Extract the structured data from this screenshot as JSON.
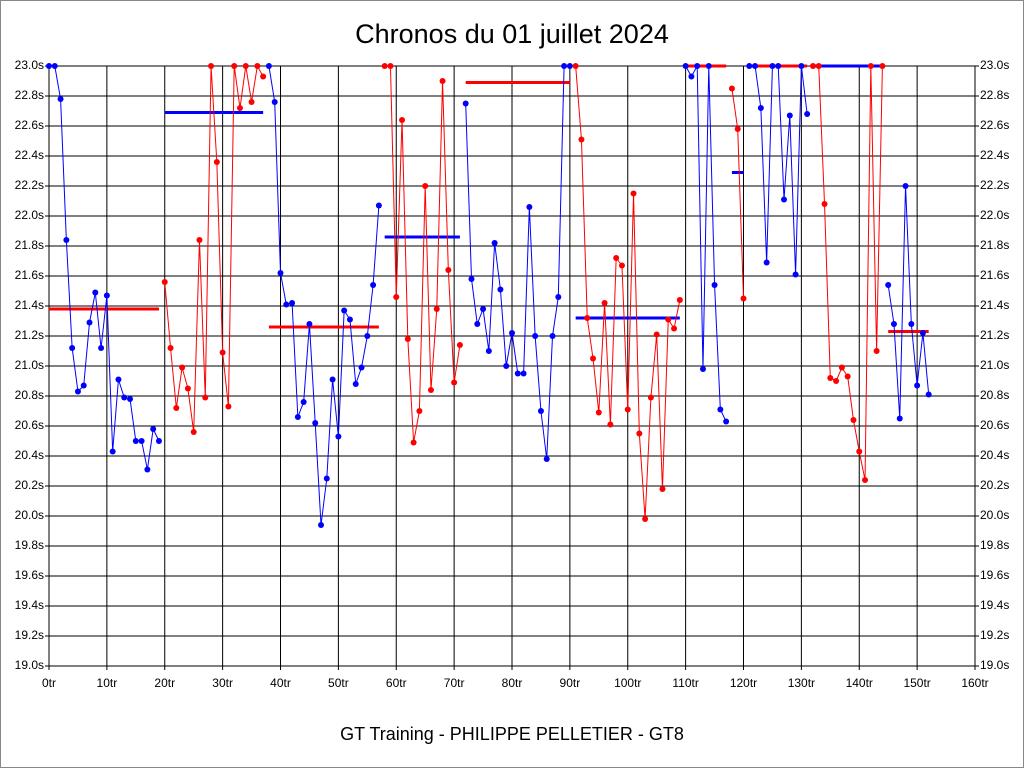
{
  "chart_data": {
    "type": "line",
    "title": "Chronos du 01 juillet 2024",
    "footer": "GT Training - PHILIPPE PELLETIER - GT8",
    "xlim": [
      0,
      160
    ],
    "xticks": [
      {
        "value": 0,
        "label": "0tr"
      },
      {
        "value": 10,
        "label": "10tr"
      },
      {
        "value": 20,
        "label": "20tr"
      },
      {
        "value": 30,
        "label": "30tr"
      },
      {
        "value": 40,
        "label": "40tr"
      },
      {
        "value": 50,
        "label": "50tr"
      },
      {
        "value": 60,
        "label": "60tr"
      },
      {
        "value": 70,
        "label": "70tr"
      },
      {
        "value": 80,
        "label": "80tr"
      },
      {
        "value": 90,
        "label": "90tr"
      },
      {
        "value": 100,
        "label": "100tr"
      },
      {
        "value": 110,
        "label": "110tr"
      },
      {
        "value": 120,
        "label": "120tr"
      },
      {
        "value": 130,
        "label": "130tr"
      },
      {
        "value": 140,
        "label": "140tr"
      },
      {
        "value": 150,
        "label": "150tr"
      },
      {
        "value": 160,
        "label": "160tr"
      }
    ],
    "ylim": [
      19.0,
      23.0
    ],
    "yticks": [
      {
        "value": 19.0,
        "label": "19.0s"
      },
      {
        "value": 19.2,
        "label": "19.2s"
      },
      {
        "value": 19.4,
        "label": "19.4s"
      },
      {
        "value": 19.6,
        "label": "19.6s"
      },
      {
        "value": 19.8,
        "label": "19.8s"
      },
      {
        "value": 20.0,
        "label": "20.0s"
      },
      {
        "value": 20.2,
        "label": "20.2s"
      },
      {
        "value": 20.4,
        "label": "20.4s"
      },
      {
        "value": 20.6,
        "label": "20.6s"
      },
      {
        "value": 20.8,
        "label": "20.8s"
      },
      {
        "value": 21.0,
        "label": "21.0s"
      },
      {
        "value": 21.2,
        "label": "21.2s"
      },
      {
        "value": 21.4,
        "label": "21.4s"
      },
      {
        "value": 21.6,
        "label": "21.6s"
      },
      {
        "value": 21.8,
        "label": "21.8s"
      },
      {
        "value": 22.0,
        "label": "22.0s"
      },
      {
        "value": 22.2,
        "label": "22.2s"
      },
      {
        "value": 22.4,
        "label": "22.4s"
      },
      {
        "value": 22.6,
        "label": "22.6s"
      },
      {
        "value": 22.8,
        "label": "22.8s"
      },
      {
        "value": 23.0,
        "label": "23.0s"
      }
    ],
    "grid": true,
    "series": [
      {
        "color": "#0000ff",
        "x": [
          0,
          1,
          2,
          3,
          4,
          5,
          6,
          7,
          8,
          9,
          10,
          11,
          12,
          13,
          14,
          15,
          16,
          17,
          18,
          19
        ],
        "values": [
          23.0,
          23.0,
          22.78,
          21.84,
          21.12,
          20.83,
          20.87,
          21.29,
          21.49,
          21.12,
          21.47,
          20.43,
          20.91,
          20.79,
          20.78,
          20.5,
          20.5,
          20.31,
          20.58,
          20.5
        ]
      },
      {
        "color": "#ff0000",
        "x": [
          20,
          21,
          22,
          23,
          24,
          25,
          26,
          27,
          28,
          29,
          30,
          31,
          32,
          33,
          34,
          35,
          36,
          37
        ],
        "values": [
          21.56,
          21.12,
          20.72,
          20.99,
          20.85,
          20.56,
          21.84,
          20.79,
          23.0,
          22.36,
          21.09,
          20.73,
          23.0,
          22.72,
          23.0,
          22.76,
          23.0,
          22.93
        ]
      },
      {
        "color": "#0000ff",
        "x": [
          38,
          39,
          40,
          41,
          42,
          43,
          44,
          45,
          46,
          47,
          48,
          49,
          50,
          51,
          52,
          53,
          54,
          55,
          56,
          57
        ],
        "values": [
          23.0,
          22.76,
          21.62,
          21.41,
          21.42,
          20.66,
          20.76,
          21.28,
          20.62,
          19.94,
          20.25,
          20.91,
          20.53,
          21.37,
          21.31,
          20.88,
          20.99,
          21.2,
          21.54,
          22.07
        ]
      },
      {
        "color": "#ff0000",
        "x": [
          58,
          59,
          60,
          61,
          62,
          63,
          64,
          65,
          66,
          67,
          68,
          69,
          70,
          71
        ],
        "values": [
          23.0,
          23.0,
          21.46,
          22.64,
          21.18,
          20.49,
          20.7,
          22.2,
          20.84,
          21.38,
          22.9,
          21.64,
          20.89,
          21.14
        ]
      },
      {
        "color": "#0000ff",
        "x": [
          72,
          73,
          74,
          75,
          76,
          77,
          78,
          79,
          80,
          81,
          82,
          83,
          84,
          85,
          86,
          87,
          88,
          89,
          90
        ],
        "values": [
          22.75,
          21.58,
          21.28,
          21.38,
          21.1,
          21.82,
          21.51,
          21.0,
          21.22,
          20.95,
          20.95,
          22.06,
          21.2,
          20.7,
          20.38,
          21.2,
          21.46,
          23.0,
          23.0
        ]
      },
      {
        "color": "#ff0000",
        "x": [
          91,
          92,
          93,
          94,
          95,
          96,
          97,
          98,
          99,
          100,
          101,
          102,
          103,
          104,
          105,
          106,
          107,
          108,
          109
        ],
        "values": [
          23.0,
          22.51,
          21.32,
          21.05,
          20.69,
          21.42,
          20.61,
          21.72,
          21.67,
          20.71,
          22.15,
          20.55,
          19.98,
          20.79,
          21.21,
          20.18,
          21.31,
          21.25,
          21.44
        ]
      },
      {
        "color": "#0000ff",
        "x": [
          110,
          111,
          112,
          113,
          114,
          115,
          116,
          117
        ],
        "values": [
          23.0,
          22.93,
          23.0,
          20.98,
          23.0,
          21.54,
          20.71,
          20.63
        ]
      },
      {
        "color": "#ff0000",
        "x": [
          118,
          119,
          120
        ],
        "values": [
          22.85,
          22.58,
          21.45
        ]
      },
      {
        "color": "#0000ff",
        "x": [
          121,
          122,
          123,
          124,
          125,
          126,
          127,
          128,
          129,
          130,
          131
        ],
        "values": [
          23.0,
          23.0,
          22.72,
          21.69,
          23.0,
          23.0,
          22.11,
          22.67,
          21.61,
          23.0,
          22.68
        ]
      },
      {
        "color": "#ff0000",
        "x": [
          132,
          133,
          134,
          135,
          136,
          137,
          138,
          139,
          140,
          141,
          142,
          143,
          144
        ],
        "values": [
          23.0,
          23.0,
          22.08,
          20.92,
          20.9,
          20.99,
          20.93,
          20.64,
          20.43,
          20.24,
          23.0,
          21.1,
          23.0
        ]
      },
      {
        "color": "#0000ff",
        "x": [
          145,
          146,
          147,
          148,
          149,
          150,
          151,
          152
        ],
        "values": [
          21.54,
          21.28,
          20.65,
          22.2,
          21.28,
          20.87,
          21.22,
          20.81
        ]
      }
    ],
    "averages": [
      {
        "color": "#ff0000",
        "x": [
          0,
          19
        ],
        "value": 21.38
      },
      {
        "color": "#0000ff",
        "x": [
          20,
          37
        ],
        "value": 22.69
      },
      {
        "color": "#ff0000",
        "x": [
          38,
          57
        ],
        "value": 21.26
      },
      {
        "color": "#0000ff",
        "x": [
          58,
          71
        ],
        "value": 21.86
      },
      {
        "color": "#ff0000",
        "x": [
          72,
          90
        ],
        "value": 22.89
      },
      {
        "color": "#0000ff",
        "x": [
          91,
          109
        ],
        "value": 21.32
      },
      {
        "color": "#ff0000",
        "x": [
          110,
          117
        ],
        "value": 23.0
      },
      {
        "color": "#0000ff",
        "x": [
          118,
          120
        ],
        "value": 22.29
      },
      {
        "color": "#ff0000",
        "x": [
          121,
          131
        ],
        "value": 23.0
      },
      {
        "color": "#0000ff",
        "x": [
          132,
          144
        ],
        "value": 23.0
      },
      {
        "color": "#ff0000",
        "x": [
          145,
          152
        ],
        "value": 21.23
      }
    ]
  }
}
